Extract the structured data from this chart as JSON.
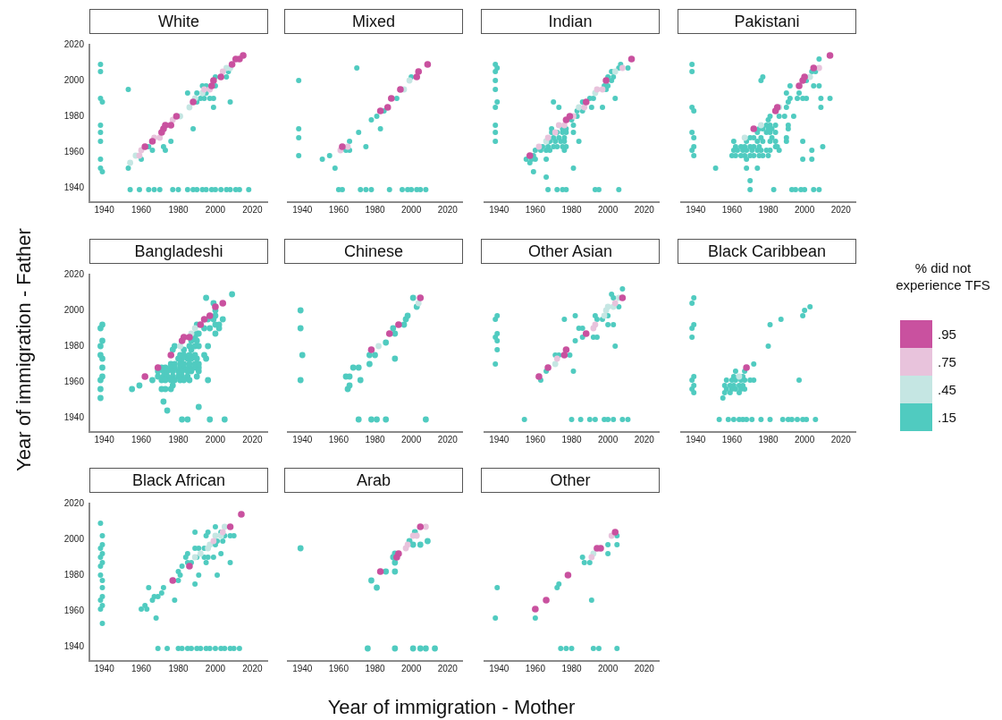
{
  "chart_data": [
    {
      "type": "scatter",
      "title": "White",
      "marker": "circle",
      "xlim": [
        1932,
        2028
      ],
      "ylim": [
        1932,
        2020
      ],
      "xticks": [
        1940,
        1960,
        1980,
        2000,
        2020
      ],
      "yticks": [
        1940,
        1960,
        1980,
        2000,
        2020
      ],
      "series": [
        {
          "color": "#c9519f",
          "x": [
            1962,
            1966,
            1971,
            1972,
            1973,
            1976,
            1979,
            1988,
            1998,
            1999,
            2003,
            2009,
            2011,
            2013,
            2015
          ],
          "values": [
            1963,
            1966,
            1971,
            1973,
            1975,
            1975,
            1980,
            1988,
            1997,
            2000,
            2002,
            2009,
            2012,
            2012,
            2014
          ]
        },
        {
          "color": "#e8c3dc",
          "x": [
            1959,
            1960,
            1967,
            1970,
            1977,
            1994,
            1997,
            2004
          ],
          "values": [
            1958,
            1961,
            1968,
            1968,
            1978,
            1995,
            1995,
            2005
          ]
        },
        {
          "color": "#c5e6e3",
          "x": [
            1954,
            1957,
            1981,
            1986,
            1989,
            1993,
            2006,
            2008
          ],
          "values": [
            1954,
            1958,
            1980,
            1985,
            1990,
            1993,
            2007,
            2007
          ]
        },
        {
          "color": "#50cbc0",
          "x": [
            1938,
            1938,
            1938,
            1939,
            1938,
            1938,
            1938,
            1938,
            1938,
            1939,
            1953,
            1953,
            1960,
            1964,
            1966,
            1972,
            1973,
            1976,
            1988,
            1985,
            1990,
            1990,
            1992,
            1993,
            1994,
            1995,
            1995,
            1997,
            1999,
            1999,
            2000,
            2000,
            2006,
            2007,
            2008,
            1954,
            1959,
            1964,
            1967,
            1970,
            1977,
            1980,
            1985,
            1988,
            1990,
            1993,
            1995,
            1998,
            2000,
            2003,
            2006,
            2008,
            2011,
            2013,
            2018
          ],
          "values": [
            2009,
            2005,
            1990,
            1988,
            1975,
            1971,
            1966,
            1956,
            1951,
            1949,
            1995,
            1951,
            1956,
            1963,
            1961,
            1963,
            1961,
            1966,
            1973,
            1993,
            1993,
            1988,
            1990,
            1997,
            1990,
            1997,
            1993,
            1990,
            1990,
            1985,
            1997,
            2002,
            2002,
            2005,
            1988,
            1939,
            1939,
            1939,
            1939,
            1939,
            1939,
            1939,
            1939,
            1939,
            1939,
            1939,
            1939,
            1939,
            1939,
            1939,
            1939,
            1939,
            1939,
            1939,
            1939
          ]
        }
      ]
    },
    {
      "type": "scatter",
      "title": "Mixed",
      "marker": "circle",
      "tick_labels": "x",
      "xlim": [
        1932,
        2028
      ],
      "ylim": [
        1932,
        2020
      ],
      "xticks": [
        1940,
        1960,
        1980,
        2000,
        2020
      ],
      "yticks": [
        1940,
        1960,
        1980,
        2000,
        2020
      ],
      "series": [
        {
          "color": "#c9519f",
          "x": [
            1962,
            1983,
            1987,
            1989,
            1994,
            2003,
            2004,
            2009
          ],
          "values": [
            1963,
            1983,
            1985,
            1990,
            1995,
            2002,
            2005,
            2009
          ]
        },
        {
          "color": "#e8c3dc",
          "x": [
            1961,
            1965
          ],
          "values": [
            1961,
            1963
          ]
        },
        {
          "color": "#c5e6e3",
          "x": [
            1996,
            1999
          ],
          "values": [
            1995,
            2000
          ]
        },
        {
          "color": "#50cbc0",
          "x": [
            1938,
            1938,
            1938,
            1938,
            1951,
            1955,
            1958,
            1964,
            1966,
            1966,
            1970,
            1971,
            1975,
            1978,
            1981,
            1983,
            1985,
            1992,
            2000,
            1960,
            1962,
            1972,
            1975,
            1978,
            1988,
            1995,
            1998,
            2000,
            2003,
            2005,
            2008
          ],
          "values": [
            2000,
            1973,
            1968,
            1958,
            1956,
            1958,
            1951,
            1961,
            1961,
            1966,
            2007,
            1971,
            1963,
            1978,
            1980,
            1973,
            1983,
            1990,
            2002,
            1939,
            1939,
            1939,
            1939,
            1939,
            1939,
            1939,
            1939,
            1939,
            1939,
            1939,
            1939
          ]
        }
      ]
    },
    {
      "type": "scatter",
      "title": "Indian",
      "marker": "circle",
      "tick_labels": "x",
      "xlim": [
        1932,
        2028
      ],
      "ylim": [
        1932,
        2020
      ],
      "xticks": [
        1940,
        1960,
        1980,
        2000,
        2020
      ],
      "yticks": [
        1940,
        1960,
        1980,
        2000,
        2020
      ],
      "series": [
        {
          "color": "#c9519f",
          "x": [
            1957,
            1977,
            1979,
            1988,
            1999,
            2013
          ],
          "values": [
            1958,
            1978,
            1980,
            1988,
            2000,
            2012
          ]
        },
        {
          "color": "#e8c3dc",
          "x": [
            1962,
            1967,
            1971,
            1973,
            1976,
            1981,
            1987,
            1994,
            1997,
            2008
          ],
          "values": [
            1963,
            1968,
            1971,
            1975,
            1975,
            1980,
            1985,
            1995,
            1995,
            2007
          ]
        },
        {
          "color": "#c5e6e3",
          "x": [
            1966,
            1984,
            1993,
            2004
          ],
          "values": [
            1966,
            1985,
            1993,
            2005
          ]
        },
        {
          "color": "#50cbc0",
          "x": [
            1938,
            1939,
            1938,
            1938,
            1938,
            1939,
            1938,
            1938,
            1938,
            1938,
            1955,
            1958,
            1960,
            1966,
            1957,
            1959,
            1960,
            1963,
            1966,
            1968,
            1976,
            1964,
            1967,
            1970,
            1972,
            1975,
            1977,
            1968,
            1971,
            1974,
            1976,
            1984,
            1970,
            1973,
            1976,
            1969,
            1972,
            1975,
            1977,
            1981,
            1969,
            1975,
            1977,
            1981,
            1980,
            1983,
            1983,
            1986,
            1973,
            1991,
            1997,
            1970,
            1986,
            1990,
            1992,
            2004,
            1999,
            1998,
            2000,
            2002,
            2000,
            2003,
            2002,
            2006,
            2011,
            2007,
            1981,
            1966,
            1959,
            1967,
            1972,
            1975,
            1977,
            1993,
            1995,
            2006
          ],
          "values": [
            2009,
            2007,
            2005,
            2000,
            1995,
            1988,
            1985,
            1975,
            1971,
            1966,
            1956,
            1956,
            1956,
            1956,
            1954,
            1958,
            1961,
            1961,
            1961,
            1961,
            1961,
            1963,
            1963,
            1963,
            1963,
            1963,
            1963,
            1966,
            1966,
            1966,
            1966,
            1966,
            1968,
            1968,
            1968,
            1971,
            1971,
            1971,
            1971,
            1971,
            1973,
            1973,
            1973,
            1975,
            1978,
            1980,
            1983,
            1983,
            1985,
            1985,
            1985,
            1988,
            1988,
            1990,
            1990,
            1990,
            1995,
            1997,
            1997,
            2000,
            2002,
            2002,
            2005,
            2007,
            2007,
            2009,
            1951,
            1946,
            1949,
            1939,
            1939,
            1939,
            1939,
            1939,
            1939,
            1939
          ]
        }
      ]
    },
    {
      "type": "scatter",
      "title": "Pakistani",
      "marker": "circle",
      "tick_labels": "x",
      "xlim": [
        1932,
        2028
      ],
      "ylim": [
        1932,
        2020
      ],
      "xticks": [
        1940,
        1960,
        1980,
        2000,
        2020
      ],
      "yticks": [
        1940,
        1960,
        1980,
        2000,
        2020
      ],
      "series": [
        {
          "color": "#c9519f",
          "x": [
            1972,
            1984,
            1985,
            1997,
            1999,
            2000,
            2005,
            2014
          ],
          "values": [
            1973,
            1983,
            1985,
            1997,
            2000,
            2002,
            2007,
            2014
          ]
        },
        {
          "color": "#e8c3dc",
          "x": [
            2008
          ],
          "values": [
            2007
          ]
        },
        {
          "color": "#c5e6e3",
          "x": [
            1967,
            1976,
            1986,
            2003
          ],
          "values": [
            1968,
            1975,
            1985,
            2002
          ]
        },
        {
          "color": "#50cbc0",
          "x": [
            1938,
            1938,
            1938,
            1939,
            1938,
            1939,
            1939,
            1938,
            1939,
            1951,
            1960,
            1962,
            1965,
            1967,
            1970,
            1972,
            1975,
            1977,
            1980,
            1961,
            1963,
            1966,
            1968,
            1971,
            1974,
            1976,
            1979,
            1981,
            1986,
            2004,
            1962,
            1965,
            1967,
            1970,
            1972,
            1975,
            1984,
            1985,
            2010,
            1961,
            1968,
            1974,
            1977,
            1981,
            1984,
            1990,
            1999,
            1970,
            1972,
            1976,
            1982,
            1990,
            1974,
            1979,
            1981,
            1984,
            1975,
            1977,
            1980,
            1982,
            1991,
            1979,
            1981,
            1984,
            1991,
            1980,
            1981,
            1986,
            1989,
            1994,
            1990,
            2009,
            1991,
            1992,
            1996,
            1999,
            2001,
            2009,
            2014,
            1990,
            1997,
            1992,
            2005,
            2008,
            1976,
            2001,
            1977,
            2004,
            2006,
            2008,
            1968,
            1999,
            2004,
            1968,
            1974,
            1970,
            1970,
            1983,
            1993,
            1995,
            1998,
            2000,
            2005,
            2008
          ],
          "values": [
            2009,
            2005,
            1985,
            1983,
            1971,
            1968,
            1963,
            1961,
            1958,
            1951,
            1958,
            1958,
            1958,
            1958,
            1958,
            1958,
            1958,
            1958,
            1958,
            1961,
            1961,
            1961,
            1961,
            1961,
            1961,
            1961,
            1961,
            1961,
            1961,
            1961,
            1963,
            1963,
            1963,
            1963,
            1963,
            1963,
            1963,
            1963,
            1963,
            1966,
            1966,
            1966,
            1966,
            1966,
            1966,
            1966,
            1966,
            1968,
            1968,
            1968,
            1968,
            1968,
            1971,
            1971,
            1971,
            1971,
            1973,
            1973,
            1973,
            1973,
            1973,
            1975,
            1975,
            1975,
            1975,
            1978,
            1980,
            1980,
            1980,
            1980,
            1985,
            1985,
            1988,
            1990,
            1990,
            1990,
            1990,
            1990,
            1990,
            1993,
            1993,
            1997,
            1997,
            1997,
            2000,
            2000,
            2002,
            2005,
            2005,
            2012,
            1956,
            1956,
            1956,
            1951,
            1951,
            1944,
            1939,
            1939,
            1939,
            1939,
            1939,
            1939,
            1939,
            1939
          ]
        }
      ]
    },
    {
      "type": "scatter",
      "title": "Bangladeshi",
      "ylabel": "Year of immigration - Father",
      "marker": "circle",
      "xlim": [
        1932,
        2028
      ],
      "ylim": [
        1932,
        2020
      ],
      "xticks": [
        1940,
        1960,
        1980,
        2000,
        2020
      ],
      "yticks": [
        1940,
        1960,
        1980,
        2000,
        2020
      ],
      "series": [
        {
          "color": "#c9519f",
          "x": [
            1962,
            1969,
            1976,
            1982,
            1983,
            1986,
            1992,
            1994,
            1997,
            2000,
            2004
          ],
          "values": [
            1963,
            1968,
            1975,
            1983,
            1985,
            1985,
            1992,
            1995,
            1997,
            2002,
            2004
          ]
        },
        {
          "color": "#c5e6e3",
          "x": [
            1981,
            1987,
            1989
          ],
          "values": [
            1980,
            1987,
            1990
          ]
        },
        {
          "color": "#50cbc0",
          "x": [
            1938,
            1939,
            1938,
            1939,
            1938,
            1939,
            1939,
            1939,
            1938,
            1938,
            1938,
            1955,
            1959,
            1966,
            1971,
            1973,
            1976,
            1978,
            1981,
            1983,
            1986,
            1989,
            1991,
            1969,
            1972,
            1974,
            1977,
            1980,
            1982,
            1985,
            1987,
            1991,
            1969,
            1972,
            1974,
            1977,
            1980,
            1982,
            1985,
            1990,
            1971,
            1973,
            1976,
            1978,
            1981,
            1983,
            1986,
            1996,
            1977,
            1971,
            1973,
            1976,
            1976,
            1978,
            1981,
            1983,
            1986,
            1989,
            1991,
            1980,
            1982,
            1985,
            1987,
            1990,
            1995,
            1981,
            1983,
            1986,
            1989,
            1994,
            1977,
            1983,
            1987,
            1978,
            1986,
            1989,
            1991,
            1996,
            1987,
            1990,
            1989,
            1990,
            1991,
            2000,
            1994,
            1997,
            2002,
            1990,
            2000,
            2002,
            1996,
            1999,
            2004,
            2000,
            2000,
            1995,
            1999,
            2009,
            1972,
            1974,
            1991,
            1982,
            1985,
            1997,
            2005
          ],
          "values": [
            1990,
            1992,
            1980,
            1983,
            1975,
            1973,
            1968,
            1963,
            1961,
            1956,
            1951,
            1956,
            1958,
            1961,
            1968,
            1968,
            1968,
            1968,
            1968,
            1968,
            1968,
            1968,
            1968,
            1966,
            1966,
            1966,
            1966,
            1966,
            1966,
            1966,
            1966,
            1966,
            1963,
            1963,
            1963,
            1963,
            1963,
            1963,
            1963,
            1963,
            1961,
            1961,
            1961,
            1961,
            1961,
            1961,
            1961,
            1961,
            1958,
            1956,
            1956,
            1956,
            1970,
            1970,
            1970,
            1970,
            1970,
            1970,
            1970,
            1973,
            1973,
            1973,
            1973,
            1973,
            1973,
            1975,
            1975,
            1975,
            1975,
            1975,
            1978,
            1978,
            1978,
            1980,
            1980,
            1980,
            1980,
            1980,
            1983,
            1983,
            1985,
            1987,
            1987,
            1987,
            1990,
            1990,
            1990,
            1992,
            1992,
            1992,
            1995,
            1995,
            1995,
            1997,
            2000,
            2007,
            2004,
            2009,
            1949,
            1944,
            1946,
            1939,
            1939,
            1939,
            1939
          ]
        }
      ]
    },
    {
      "type": "scatter",
      "title": "Chinese",
      "marker": "circle",
      "tick_labels": "x",
      "xlim": [
        1932,
        2028
      ],
      "ylim": [
        1932,
        2020
      ],
      "xticks": [
        1940,
        1960,
        1980,
        2000,
        2020
      ],
      "yticks": [
        1940,
        1960,
        1980,
        2000,
        2020
      ],
      "series": [
        {
          "color": "#c9519f",
          "x": [
            1978,
            1988,
            1993,
            2005
          ],
          "values": [
            1978,
            1987,
            1992,
            2007
          ]
        },
        {
          "color": "#c5e6e3",
          "x": [
            1982,
            2004
          ],
          "values": [
            1980,
            2004
          ]
        },
        {
          "color": "#50cbc0",
          "x": [
            1939,
            1939,
            1940,
            1939,
            1964,
            1966,
            1965,
            1966,
            1968,
            1971,
            1972,
            1977,
            1977,
            1980,
            1986,
            1990,
            1991,
            1991,
            1996,
            1997,
            1998,
            2001,
            2003,
            1971,
            1978,
            1981,
            1986,
            2008
          ],
          "values": [
            2000,
            1990,
            1975,
            1961,
            1963,
            1963,
            1956,
            1958,
            1968,
            1968,
            1961,
            1970,
            1975,
            1975,
            1982,
            1990,
            1987,
            1973,
            1992,
            1995,
            1997,
            2007,
            2002,
            1939,
            1939,
            1939,
            1939,
            1939
          ]
        }
      ]
    },
    {
      "type": "scatter",
      "title": "Other Asian",
      "marker": "circle",
      "tick_labels": "x",
      "xlim": [
        1932,
        2028
      ],
      "ylim": [
        1932,
        2020
      ],
      "xticks": [
        1940,
        1960,
        1980,
        2000,
        2020
      ],
      "yticks": [
        1940,
        1960,
        1980,
        2000,
        2020
      ],
      "series": [
        {
          "color": "#c9519f",
          "x": [
            1962,
            1967,
            1976,
            1977,
            1988,
            2008
          ],
          "values": [
            1963,
            1968,
            1975,
            1978,
            1987,
            2007
          ]
        },
        {
          "color": "#e8c3dc",
          "x": [
            1972,
            1992,
            1993,
            2004
          ],
          "values": [
            1973,
            1990,
            1992,
            2004
          ]
        },
        {
          "color": "#c5e6e3",
          "x": [
            1971,
            1998,
            1999,
            2000,
            2003,
            2006
          ],
          "values": [
            1970,
            1997,
            2000,
            2002,
            2002,
            2007
          ]
        },
        {
          "color": "#50cbc0",
          "x": [
            1938,
            1939,
            1938,
            1939,
            1939,
            1939,
            1938,
            1963,
            1966,
            1971,
            1973,
            1979,
            1976,
            1981,
            1982,
            1982,
            1984,
            1986,
            1986,
            1992,
            1994,
            1993,
            1994,
            1997,
            2000,
            2000,
            2003,
            2002,
            2003,
            2006,
            2004,
            2008,
            1954,
            1980,
            1985,
            1990,
            1993,
            1998,
            2000,
            2003,
            2008,
            2011
          ],
          "values": [
            1995,
            1997,
            1985,
            1987,
            1983,
            1978,
            1970,
            1961,
            1966,
            1975,
            1975,
            1975,
            1995,
            1966,
            1983,
            1997,
            1990,
            1990,
            1985,
            1985,
            1985,
            1997,
            1995,
            1995,
            1997,
            1992,
            1992,
            2009,
            2007,
            2002,
            1980,
            2012,
            1939,
            1939,
            1939,
            1939,
            1939,
            1939,
            1939,
            1939,
            1939,
            1939
          ]
        }
      ]
    },
    {
      "type": "scatter",
      "title": "Black Caribbean",
      "marker": "circle",
      "tick_labels": "x",
      "legend": "right",
      "legend_title": "% did not experience TFS",
      "xlim": [
        1932,
        2028
      ],
      "ylim": [
        1932,
        2020
      ],
      "xticks": [
        1940,
        1960,
        1980,
        2000,
        2020
      ],
      "yticks": [
        1940,
        1960,
        1980,
        2000,
        2020
      ],
      "series": [
        {
          "name": ".95",
          "color": "#c9519f",
          "x": [
            1968
          ],
          "values": [
            1968
          ]
        },
        {
          "name": ".75",
          "color": "#e8c3dc"
        },
        {
          "name": ".45",
          "color": "#c5e6e3",
          "x": [
            1964
          ],
          "values": [
            1963
          ]
        },
        {
          "name": ".15",
          "color": "#50cbc0",
          "x": [
            1938,
            1939,
            1938,
            1939,
            1938,
            1939,
            1938,
            1939,
            1938,
            1939,
            1955,
            1956,
            1959,
            1964,
            1957,
            1960,
            1962,
            1965,
            1967,
            1956,
            1959,
            1961,
            1964,
            1966,
            1957,
            1960,
            1962,
            1965,
            1967,
            1970,
            1972,
            1961,
            1966,
            1962,
            1967,
            1972,
            1980,
            1981,
            1987,
            1997,
            1999,
            2000,
            2003,
            1953,
            1958,
            1961,
            1964,
            1966,
            1968,
            1971,
            1976,
            1981,
            1988,
            1991,
            1993,
            1996,
            1999,
            2001,
            2006
          ],
          "values": [
            2004,
            2007,
            1990,
            1992,
            1985,
            1963,
            1961,
            1958,
            1956,
            1954,
            1951,
            1954,
            1954,
            1954,
            1956,
            1956,
            1956,
            1956,
            1956,
            1958,
            1958,
            1958,
            1958,
            1958,
            1961,
            1961,
            1961,
            1961,
            1961,
            1961,
            1961,
            1963,
            1963,
            1966,
            1966,
            1970,
            1980,
            1992,
            1995,
            1961,
            1997,
            2000,
            2002,
            1939,
            1939,
            1939,
            1939,
            1939,
            1939,
            1939,
            1939,
            1939,
            1939,
            1939,
            1939,
            1939,
            1939,
            1939,
            1939
          ]
        }
      ]
    },
    {
      "type": "scatter",
      "title": "Black African",
      "marker": "circle",
      "xlim": [
        1932,
        2028
      ],
      "ylim": [
        1932,
        2020
      ],
      "xticks": [
        1940,
        1960,
        1980,
        2000,
        2020
      ],
      "yticks": [
        1940,
        1960,
        1980,
        2000,
        2020
      ],
      "series": [
        {
          "color": "#c9519f",
          "x": [
            1977,
            1986,
            2008,
            2014
          ],
          "values": [
            1977,
            1985,
            2007,
            2014
          ]
        },
        {
          "color": "#e8c3dc",
          "x": [
            1999,
            2004
          ],
          "values": [
            1999,
            2004
          ]
        },
        {
          "color": "#c5e6e3",
          "x": [
            1989,
            1992,
            1996,
            1997,
            2000,
            2003,
            2005
          ],
          "values": [
            1990,
            1992,
            1995,
            1997,
            2002,
            2002,
            2007
          ]
        },
        {
          "color": "#50cbc0",
          "x": [
            1938,
            1938,
            1938,
            1938,
            1938,
            1938,
            1938,
            1939,
            1939,
            1939,
            1939,
            1939,
            1939,
            1939,
            1939,
            1939,
            1960,
            1962,
            1963,
            1964,
            1966,
            1967,
            1968,
            1969,
            1971,
            1972,
            1978,
            1980,
            1981,
            1980,
            1982,
            1984,
            1985,
            1985,
            1987,
            1989,
            1989,
            1989,
            1990,
            1991,
            1991,
            1994,
            1994,
            1995,
            1995,
            1996,
            1996,
            1999,
            2000,
            2000,
            2001,
            2001,
            2003,
            2004,
            2005,
            2008,
            2008,
            2010,
            2003,
            1969,
            1974,
            1980,
            1982,
            1985,
            1987,
            1990,
            1992,
            1995,
            1997,
            2000,
            2003,
            2005,
            2008,
            2010,
            2013
          ],
          "values": [
            2009,
            1995,
            1990,
            1985,
            1980,
            1966,
            1961,
            2002,
            1997,
            1992,
            1987,
            1977,
            1973,
            1968,
            1963,
            1953,
            1961,
            1963,
            1961,
            1973,
            1966,
            1968,
            1956,
            1968,
            1970,
            1973,
            1966,
            1977,
            1980,
            1982,
            1985,
            1990,
            1992,
            1987,
            1987,
            1995,
            2004,
            1975,
            1990,
            1995,
            1980,
            1990,
            1995,
            1987,
            2002,
            2004,
            1990,
            1990,
            1997,
            2007,
            1999,
            1980,
            1992,
            1999,
            2002,
            2002,
            1987,
            2002,
            2004,
            1939,
            1939,
            1939,
            1939,
            1939,
            1939,
            1939,
            1939,
            1939,
            1939,
            1939,
            1939,
            1939,
            1939,
            1939,
            1939
          ]
        }
      ]
    },
    {
      "type": "scatter",
      "title": "Arab",
      "xlabel": "Year of immigration - Mother",
      "marker": "circle",
      "tick_labels": "x",
      "xlim": [
        1932,
        2028
      ],
      "ylim": [
        1932,
        2020
      ],
      "xticks": [
        1940,
        1960,
        1980,
        2000,
        2020
      ],
      "yticks": [
        1940,
        1960,
        1980,
        2000,
        2020
      ],
      "series": [
        {
          "color": "#c9519f",
          "x": [
            1983,
            1992,
            1993,
            2005
          ],
          "values": [
            1982,
            1990,
            1992,
            2007
          ]
        },
        {
          "color": "#e8c3dc",
          "x": [
            1997,
            1998,
            2001,
            2003,
            2008
          ],
          "values": [
            1995,
            1997,
            2002,
            2002,
            2007
          ]
        },
        {
          "color": "#50cbc0",
          "x": [
            1939,
            1978,
            1981,
            1986,
            1990,
            1991,
            1991,
            1991,
            1999,
            2001,
            2002,
            2005,
            2009,
            1976,
            1991,
            2001,
            2005,
            2008,
            2013
          ],
          "values": [
            1995,
            1977,
            1973,
            1982,
            1990,
            1992,
            1987,
            1982,
            1999,
            1997,
            2004,
            1997,
            1999,
            1939,
            1939,
            1939,
            1939,
            1939,
            1939
          ]
        }
      ]
    },
    {
      "type": "scatter",
      "title": "Other",
      "marker": "circle",
      "tick_labels": "x",
      "xlim": [
        1932,
        2028
      ],
      "ylim": [
        1932,
        2020
      ],
      "xticks": [
        1940,
        1960,
        1980,
        2000,
        2020
      ],
      "yticks": [
        1940,
        1960,
        1980,
        2000,
        2020
      ],
      "series": [
        {
          "color": "#c9519f",
          "x": [
            1960,
            1966,
            1978,
            1994,
            1996,
            2004
          ],
          "values": [
            1961,
            1966,
            1980,
            1995,
            1995,
            2004
          ]
        },
        {
          "color": "#e8c3dc",
          "x": [
            1991,
            2002
          ],
          "values": [
            1990,
            2002
          ]
        },
        {
          "color": "#c5e6e3",
          "x": [
            1992
          ],
          "values": [
            1992
          ]
        },
        {
          "color": "#50cbc0",
          "x": [
            1938,
            1939,
            1960,
            1972,
            1973,
            1986,
            1987,
            1990,
            1991,
            2000,
            2000,
            2005,
            2005,
            1974,
            1977,
            1980,
            1992,
            1995,
            2005
          ],
          "values": [
            1956,
            1973,
            1956,
            1973,
            1975,
            1990,
            1987,
            1987,
            1966,
            1997,
            1992,
            2002,
            1997,
            1939,
            1939,
            1939,
            1939,
            1939,
            1939
          ]
        }
      ]
    }
  ]
}
